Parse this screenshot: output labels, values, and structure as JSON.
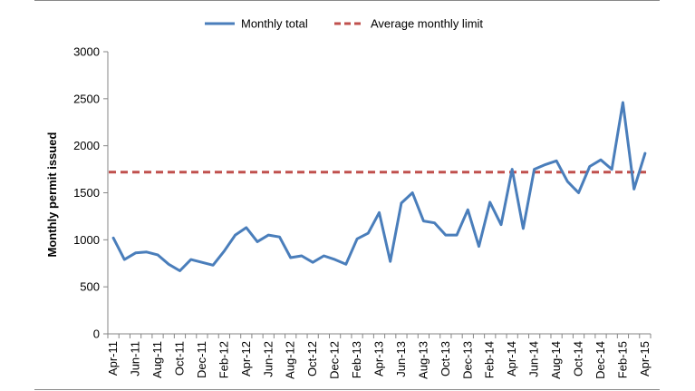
{
  "chart_data": {
    "type": "line",
    "xlabel": "",
    "ylabel": "Monthly permit issued",
    "ylim": [
      0,
      3000
    ],
    "yticks": [
      0,
      500,
      1000,
      1500,
      2000,
      2500,
      3000
    ],
    "grid": false,
    "legend_position": "top",
    "x": [
      "Apr-11",
      "May-11",
      "Jun-11",
      "Jul-11",
      "Aug-11",
      "Sep-11",
      "Oct-11",
      "Nov-11",
      "Dec-11",
      "Jan-12",
      "Feb-12",
      "Mar-12",
      "Apr-12",
      "May-12",
      "Jun-12",
      "Jul-12",
      "Aug-12",
      "Sep-12",
      "Oct-12",
      "Nov-12",
      "Dec-12",
      "Jan-13",
      "Feb-13",
      "Mar-13",
      "Apr-13",
      "May-13",
      "Jun-13",
      "Jul-13",
      "Aug-13",
      "Sep-13",
      "Oct-13",
      "Nov-13",
      "Dec-13",
      "Jan-14",
      "Feb-14",
      "Mar-14",
      "Apr-14",
      "May-14",
      "Jun-14",
      "Jul-14",
      "Aug-14",
      "Sep-14",
      "Oct-14",
      "Nov-14",
      "Dec-14",
      "Jan-15",
      "Feb-15",
      "Mar-15",
      "Apr-15"
    ],
    "x_tick_labels": [
      "Apr-11",
      "Jun-11",
      "Aug-11",
      "Oct-11",
      "Dec-11",
      "Feb-12",
      "Apr-12",
      "Jun-12",
      "Aug-12",
      "Oct-12",
      "Dec-12",
      "Feb-13",
      "Apr-13",
      "Jun-13",
      "Aug-13",
      "Oct-13",
      "Dec-13",
      "Feb-14",
      "Apr-14",
      "Jun-14",
      "Aug-14",
      "Oct-14",
      "Dec-14",
      "Feb-15",
      "Apr-15"
    ],
    "series": [
      {
        "name": "Monthly total",
        "style": "solid",
        "color": "#4a7ebb",
        "values": [
          1020,
          790,
          860,
          870,
          840,
          740,
          670,
          790,
          760,
          730,
          880,
          1050,
          1130,
          980,
          1050,
          1030,
          810,
          830,
          760,
          830,
          790,
          740,
          1010,
          1070,
          1290,
          770,
          1390,
          1500,
          1200,
          1180,
          1050,
          1050,
          1320,
          930,
          1400,
          1160,
          1750,
          1120,
          1750,
          1800,
          1840,
          1620,
          1500,
          1780,
          1850,
          1750,
          2460,
          1540,
          1920
        ]
      },
      {
        "name": "Average monthly limit",
        "style": "dashed",
        "color": "#c0504d",
        "values": [
          1720,
          1720,
          1720,
          1720,
          1720,
          1720,
          1720,
          1720,
          1720,
          1720,
          1720,
          1720,
          1720,
          1720,
          1720,
          1720,
          1720,
          1720,
          1720,
          1720,
          1720,
          1720,
          1720,
          1720,
          1720,
          1720,
          1720,
          1720,
          1720,
          1720,
          1720,
          1720,
          1720,
          1720,
          1720,
          1720,
          1720,
          1720,
          1720,
          1720,
          1720,
          1720,
          1720,
          1720,
          1720,
          1720,
          1720,
          1720,
          1720
        ]
      }
    ]
  }
}
